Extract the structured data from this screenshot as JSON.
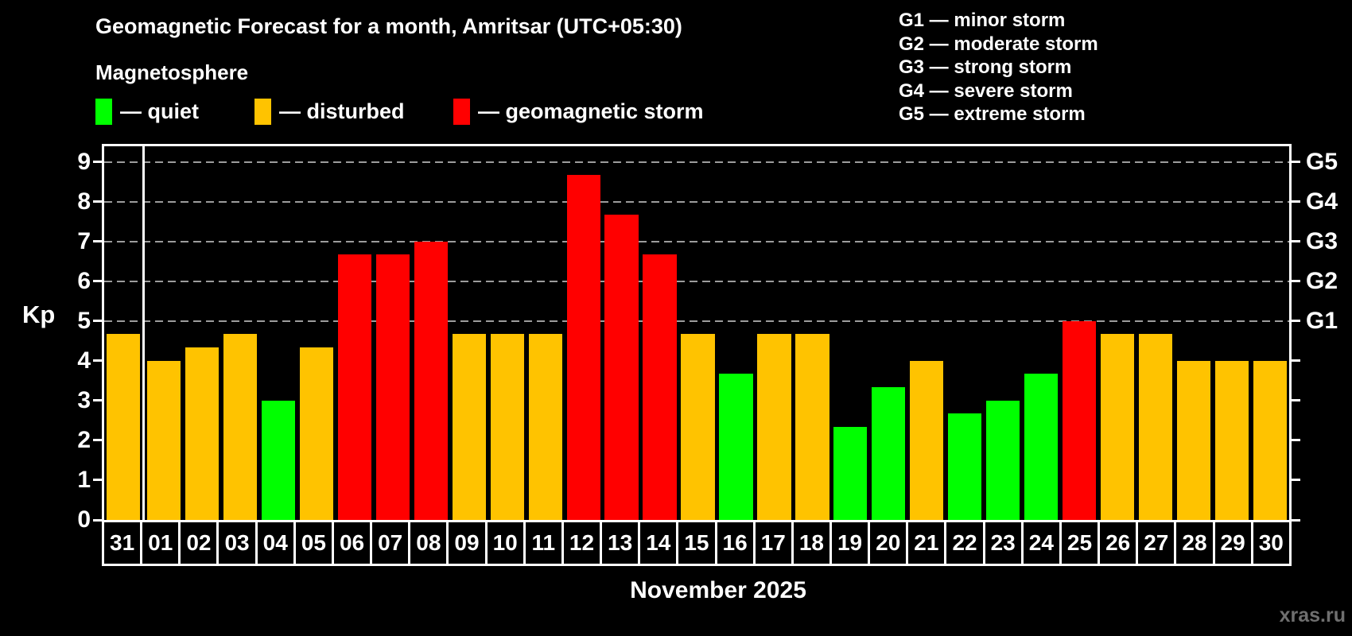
{
  "title": "Geomagnetic Forecast for a month, Amritsar (UTC+05:30)",
  "subtitle": "Magnetosphere",
  "legend": {
    "quiet": {
      "label": "— quiet",
      "color": "#00ff00"
    },
    "disturbed": {
      "label": "— disturbed",
      "color": "#ffc300"
    },
    "storm": {
      "label": "— geomagnetic storm",
      "color": "#ff0000"
    }
  },
  "g_legend": [
    {
      "label": "G1 — minor storm"
    },
    {
      "label": "G2 — moderate storm"
    },
    {
      "label": "G3 — strong storm"
    },
    {
      "label": "G4 — severe storm"
    },
    {
      "label": "G5 — extreme storm"
    }
  ],
  "axis": {
    "y_label": "Kp",
    "y_ticks": [
      0,
      1,
      2,
      3,
      4,
      5,
      6,
      7,
      8,
      9
    ],
    "g_ticks": [
      {
        "kp": 5,
        "label": "G1"
      },
      {
        "kp": 6,
        "label": "G2"
      },
      {
        "kp": 7,
        "label": "G3"
      },
      {
        "kp": 8,
        "label": "G4"
      },
      {
        "kp": 9,
        "label": "G5"
      }
    ]
  },
  "x_title": "November 2025",
  "watermark": "xras.ru",
  "chart_data": {
    "type": "bar",
    "title": "Geomagnetic Forecast for a month, Amritsar (UTC+05:30)",
    "xlabel": "November 2025",
    "ylabel": "Kp",
    "ylim": [
      0,
      9.4
    ],
    "grid": "horizontal dashed lines at Kp 5,6,7,8,9 (G1-G5)",
    "legend_position": "top",
    "categories": [
      "31",
      "01",
      "02",
      "03",
      "04",
      "05",
      "06",
      "07",
      "08",
      "09",
      "10",
      "11",
      "12",
      "13",
      "14",
      "15",
      "16",
      "17",
      "18",
      "19",
      "20",
      "21",
      "22",
      "23",
      "24",
      "25",
      "26",
      "27",
      "28",
      "29",
      "30"
    ],
    "values": [
      4.67,
      4.0,
      4.33,
      4.67,
      3.0,
      4.33,
      6.67,
      6.67,
      7.0,
      4.67,
      4.67,
      4.67,
      8.67,
      7.67,
      6.67,
      4.67,
      3.67,
      4.67,
      4.67,
      2.33,
      3.33,
      4.0,
      2.67,
      3.0,
      3.67,
      5.0,
      4.67,
      4.67,
      4.0,
      4.0,
      4.0
    ],
    "states": [
      "disturbed",
      "disturbed",
      "disturbed",
      "disturbed",
      "quiet",
      "disturbed",
      "storm",
      "storm",
      "storm",
      "disturbed",
      "disturbed",
      "disturbed",
      "storm",
      "storm",
      "storm",
      "disturbed",
      "quiet",
      "disturbed",
      "disturbed",
      "quiet",
      "quiet",
      "disturbed",
      "quiet",
      "quiet",
      "quiet",
      "storm",
      "disturbed",
      "disturbed",
      "disturbed",
      "disturbed",
      "disturbed"
    ],
    "colors": {
      "quiet": "#00ff00",
      "disturbed": "#ffc300",
      "storm": "#ff0000"
    },
    "october_separator_after_index": 0
  }
}
